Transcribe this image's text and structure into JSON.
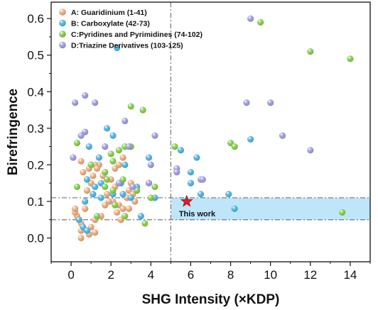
{
  "chart_data": {
    "type": "scatter",
    "title": "",
    "xlabel": "SHG Intensity (×KDP)",
    "ylabel": "Birefringence",
    "xlim": [
      -1,
      15
    ],
    "ylim": [
      -0.065,
      0.645
    ],
    "xticks": [
      "0",
      "2",
      "4",
      "6",
      "8",
      "10",
      "12",
      "14"
    ],
    "yticks": [
      "0.0",
      "0.1",
      "0.2",
      "0.3",
      "0.4",
      "0.5",
      "0.6"
    ],
    "grid": false,
    "legend_position": "top-left",
    "series": [
      {
        "name": "A: Guaridinium (1-41)",
        "color": "#f5b98c",
        "points": [
          [
            0.5,
            0.0
          ],
          [
            0.5,
            0.02
          ],
          [
            0.5,
            0.04
          ],
          [
            0.3,
            0.06
          ],
          [
            0.2,
            0.07
          ],
          [
            0.2,
            0.08
          ],
          [
            0.7,
            0.08
          ],
          [
            0.9,
            0.01
          ],
          [
            1.0,
            0.03
          ],
          [
            1.2,
            0.015
          ],
          [
            1.2,
            0.05
          ],
          [
            1.5,
            0.06
          ],
          [
            1.7,
            0.09
          ],
          [
            1.8,
            0.12
          ],
          [
            2.1,
            0.1
          ],
          [
            2.3,
            0.07
          ],
          [
            2.5,
            0.05
          ],
          [
            2.4,
            0.09
          ],
          [
            2.6,
            0.08
          ],
          [
            2.8,
            0.11
          ],
          [
            2.9,
            0.13
          ],
          [
            3.0,
            0.15
          ],
          [
            3.1,
            0.12
          ],
          [
            3.2,
            0.1
          ],
          [
            2.2,
            0.14
          ],
          [
            2.0,
            0.16
          ],
          [
            2.2,
            0.19
          ],
          [
            2.4,
            0.2
          ],
          [
            2.6,
            0.22
          ],
          [
            1.4,
            0.2
          ],
          [
            1.6,
            0.17
          ],
          [
            1.0,
            0.15
          ],
          [
            0.8,
            0.13
          ],
          [
            0.6,
            0.18
          ],
          [
            0.9,
            0.19
          ],
          [
            1.2,
            0.2
          ],
          [
            1.3,
            0.19
          ],
          [
            1.1,
            0.17
          ],
          [
            0.5,
            0.21
          ],
          [
            2.9,
            0.08
          ],
          [
            1.9,
            0.1
          ]
        ]
      },
      {
        "name": "B: Carboxylate (42-73)",
        "color": "#5fc0ec",
        "points": [
          [
            2.3,
            0.52
          ],
          [
            0.4,
            0.05
          ],
          [
            0.6,
            0.03
          ],
          [
            0.8,
            0.02
          ],
          [
            1.2,
            0.14
          ],
          [
            1.5,
            0.15
          ],
          [
            1.8,
            0.3
          ],
          [
            2.1,
            0.28
          ],
          [
            1.1,
            0.12
          ],
          [
            0.9,
            0.25
          ],
          [
            0.8,
            0.16
          ],
          [
            2.1,
            0.12
          ],
          [
            2.5,
            0.15
          ],
          [
            3.0,
            0.11
          ],
          [
            3.3,
            0.14
          ],
          [
            3.5,
            0.06
          ],
          [
            3.9,
            0.15
          ],
          [
            4.2,
            0.11
          ],
          [
            5.5,
            0.24
          ],
          [
            6.0,
            0.18
          ],
          [
            6.3,
            0.22
          ],
          [
            6.0,
            0.15
          ],
          [
            6.5,
            0.12
          ],
          [
            7.9,
            0.12
          ],
          [
            8.2,
            0.08
          ],
          [
            9.0,
            0.27
          ],
          [
            2.7,
            0.2
          ],
          [
            1.4,
            0.22
          ],
          [
            0.7,
            0.1
          ],
          [
            2.6,
            0.12
          ],
          [
            3.9,
            0.22
          ],
          [
            1.5,
            0.11
          ]
        ]
      },
      {
        "name": "C:Pyridines and Pyrimidines (74-102)",
        "color": "#93d95c",
        "points": [
          [
            0.3,
            0.26
          ],
          [
            0.3,
            0.14
          ],
          [
            1.0,
            0.2
          ],
          [
            1.3,
            0.06
          ],
          [
            1.7,
            0.18
          ],
          [
            1.8,
            0.16
          ],
          [
            2.0,
            0.23
          ],
          [
            2.1,
            0.21
          ],
          [
            2.4,
            0.24
          ],
          [
            2.7,
            0.25
          ],
          [
            3.0,
            0.36
          ],
          [
            3.6,
            0.35
          ],
          [
            3.0,
            0.25
          ],
          [
            2.1,
            0.13
          ],
          [
            2.2,
            0.09
          ],
          [
            2.7,
            0.06
          ],
          [
            2.6,
            0.16
          ],
          [
            3.3,
            0.13
          ],
          [
            3.7,
            0.04
          ],
          [
            4.0,
            0.11
          ],
          [
            4.2,
            0.14
          ],
          [
            5.2,
            0.25
          ],
          [
            8.0,
            0.26
          ],
          [
            8.2,
            0.25
          ],
          [
            9.5,
            0.59
          ],
          [
            12.0,
            0.51
          ],
          [
            14.0,
            0.49
          ],
          [
            13.6,
            0.07
          ],
          [
            1.7,
            0.14
          ]
        ]
      },
      {
        "name": "D:Triazine Derivatives (103-125)",
        "color": "#aaaaea",
        "points": [
          [
            9.0,
            0.6
          ],
          [
            0.2,
            0.37
          ],
          [
            0.7,
            0.39
          ],
          [
            1.2,
            0.37
          ],
          [
            0.5,
            0.28
          ],
          [
            0.7,
            0.29
          ],
          [
            1.7,
            0.25
          ],
          [
            2.7,
            0.32
          ],
          [
            2.9,
            0.25
          ],
          [
            4.2,
            0.28
          ],
          [
            5.3,
            0.19
          ],
          [
            6.5,
            0.16
          ],
          [
            6.6,
            0.16
          ],
          [
            8.8,
            0.37
          ],
          [
            10.0,
            0.37
          ],
          [
            10.6,
            0.28
          ],
          [
            12.0,
            0.24
          ],
          [
            5.3,
            0.18
          ],
          [
            3.1,
            0.14
          ],
          [
            2.4,
            0.15
          ],
          [
            0.1,
            0.22
          ],
          [
            3.9,
            0.15
          ],
          [
            4.0,
            0.2
          ]
        ]
      }
    ],
    "reference_lines": {
      "vertical_x": 5,
      "horizontal_y": [
        0.11,
        0.05
      ],
      "highlight_band": {
        "x_from": 5,
        "y_from": 0.05,
        "y_to": 0.11,
        "color": "#bfe6f8"
      }
    },
    "highlight_point": {
      "label": "This work",
      "x": 5.8,
      "y": 0.1,
      "color": "#d4202a"
    }
  }
}
